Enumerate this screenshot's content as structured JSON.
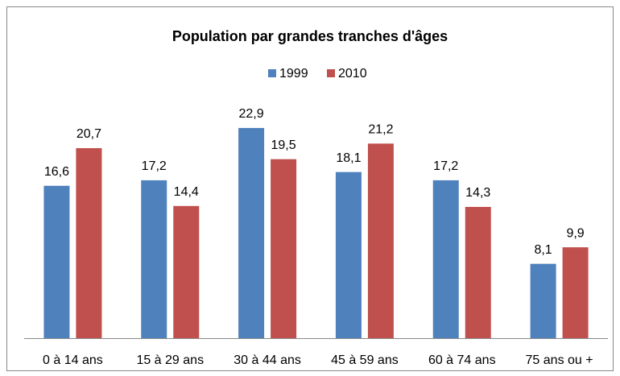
{
  "chart_data": {
    "type": "bar",
    "title": "Population par grandes tranches d'âges",
    "categories": [
      "0 à 14 ans",
      "15 à 29 ans",
      "30 à 44 ans",
      "45 à 59 ans",
      "60 à 74 ans",
      "75 ans ou +"
    ],
    "series": [
      {
        "name": "1999",
        "color": "#4f81bd",
        "values": [
          16.6,
          17.2,
          22.9,
          18.1,
          17.2,
          8.1
        ],
        "value_labels": [
          "16,6",
          "17,2",
          "22,9",
          "18,1",
          "17,2",
          "8,1"
        ]
      },
      {
        "name": "2010",
        "color": "#c0504d",
        "values": [
          20.7,
          14.4,
          19.5,
          21.2,
          14.3,
          9.9
        ],
        "value_labels": [
          "20,7",
          "14,4",
          "19,5",
          "21,2",
          "14,3",
          "9,9"
        ]
      }
    ],
    "ylim": [
      0,
      25
    ],
    "legend": "top"
  }
}
